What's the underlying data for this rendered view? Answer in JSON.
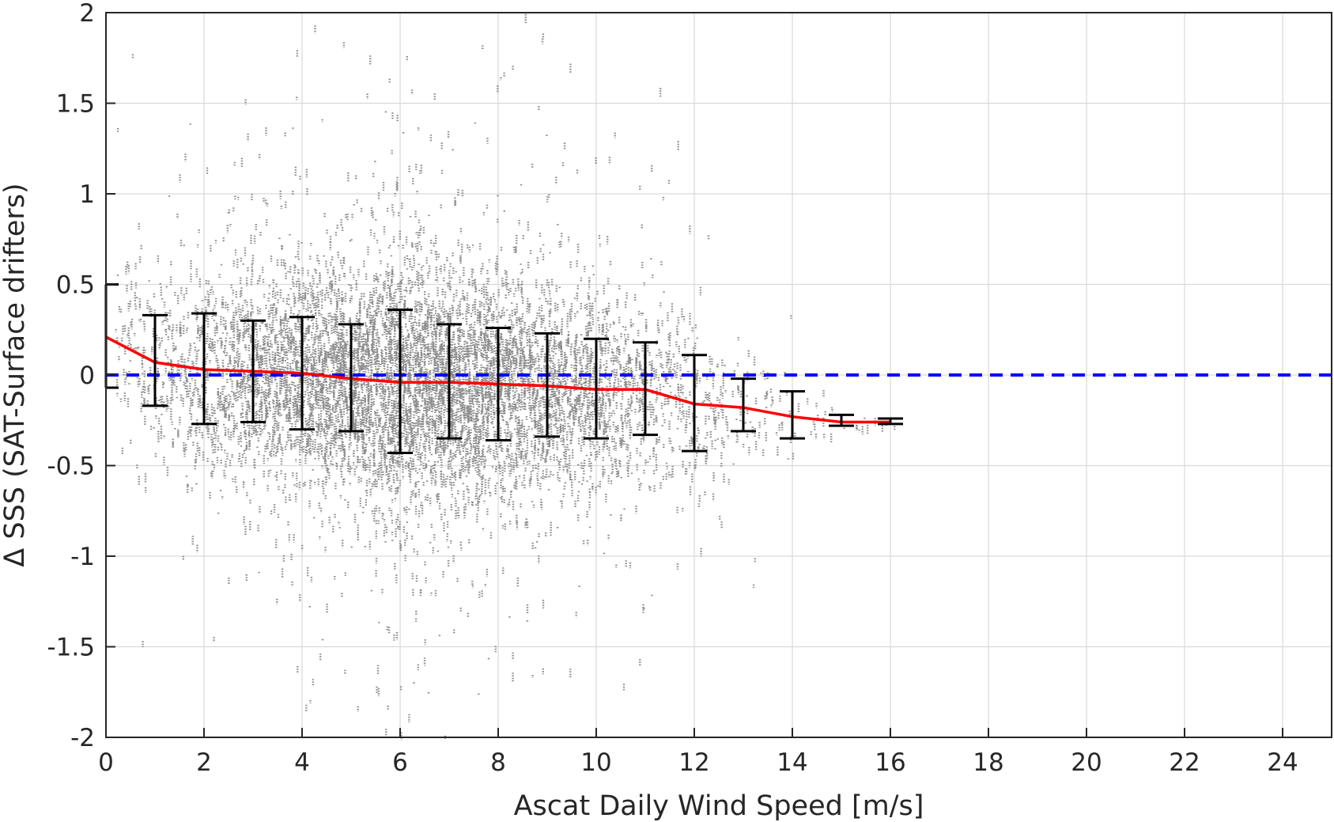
{
  "chart_data": {
    "type": "scatter",
    "xlabel": "Ascat Daily Wind Speed [m/s]",
    "ylabel": "Δ SSS (SAT-Surface drifters)",
    "xlim": [
      0,
      25
    ],
    "ylim": [
      -2,
      2
    ],
    "x_ticks": [
      0,
      2,
      4,
      6,
      8,
      10,
      12,
      14,
      16,
      18,
      20,
      22,
      24
    ],
    "y_ticks": [
      -2,
      -1.5,
      -1,
      -0.5,
      0,
      0.5,
      1,
      1.5,
      2
    ],
    "grid": true,
    "zero_reference_line": {
      "y": 0,
      "style": "dashed",
      "color": "#0000ff"
    },
    "scatter_color": "#808080",
    "scatter_extent": {
      "x_max": 16.3
    },
    "mean_line": {
      "color": "#ff0000",
      "x": [
        0,
        1,
        2,
        3,
        4,
        5,
        6,
        7,
        8,
        9,
        10,
        11,
        12,
        13,
        14,
        15,
        16
      ],
      "y": [
        0.21,
        0.07,
        0.03,
        0.02,
        0.01,
        -0.02,
        -0.04,
        -0.04,
        -0.05,
        -0.06,
        -0.08,
        -0.08,
        -0.16,
        -0.18,
        -0.23,
        -0.26,
        -0.26
      ]
    },
    "error_bars": {
      "color": "#000000",
      "x": [
        0,
        1,
        2,
        3,
        4,
        5,
        6,
        7,
        8,
        9,
        10,
        11,
        12,
        13,
        14,
        15,
        16
      ],
      "lower": [
        -0.07,
        -0.17,
        -0.27,
        -0.26,
        -0.3,
        -0.31,
        -0.43,
        -0.35,
        -0.36,
        -0.34,
        -0.35,
        -0.33,
        -0.42,
        -0.31,
        -0.35,
        -0.28,
        -0.27
      ],
      "upper": [
        0.5,
        0.33,
        0.34,
        0.3,
        0.32,
        0.28,
        0.36,
        0.28,
        0.26,
        0.23,
        0.2,
        0.18,
        0.11,
        -0.02,
        -0.09,
        -0.22,
        -0.24
      ]
    }
  }
}
